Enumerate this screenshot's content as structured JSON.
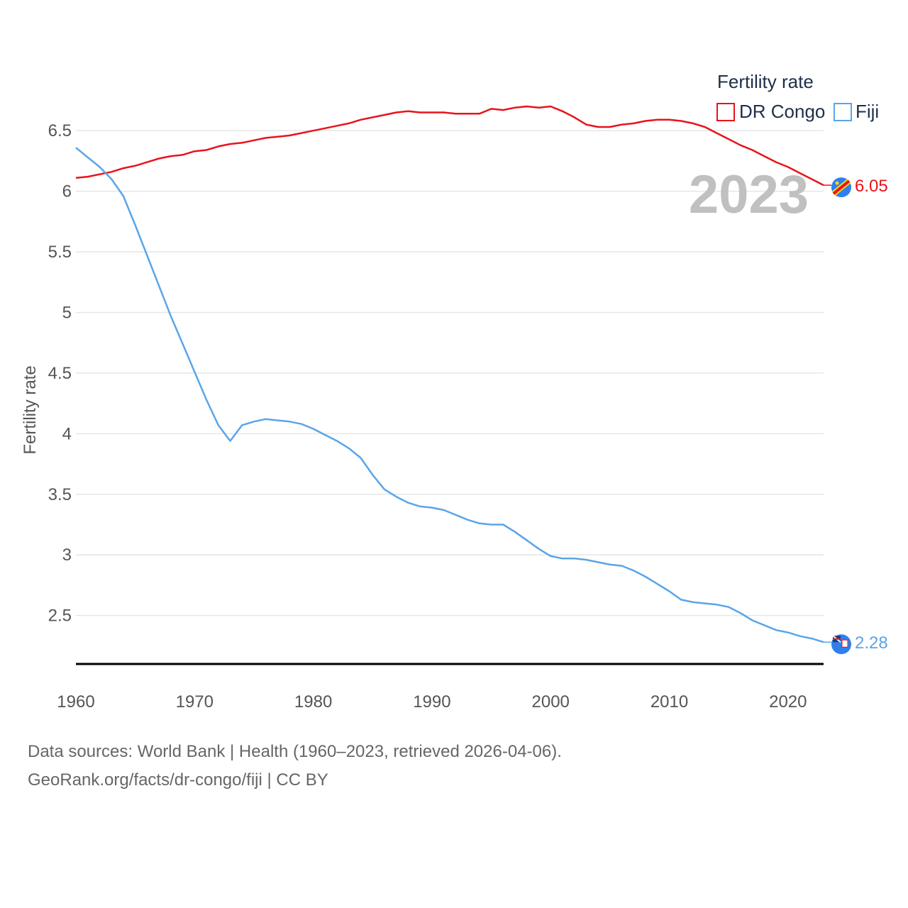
{
  "colors": {
    "dr_congo": "#e8141b",
    "fiji": "#5ba5e8",
    "grid": "#e6e6e6",
    "axis": "#000000",
    "flag_bg": "#2f80ed"
  },
  "year_watermark": "2023",
  "footer": {
    "line1": "Data sources: World Bank | Health (1960–2023, retrieved 2026-04-06).",
    "line2": "GeoRank.org/facts/dr-congo/fiji | CC BY"
  },
  "chart_data": {
    "type": "line",
    "title": "",
    "xlabel": "",
    "ylabel": "Fertility rate",
    "legend_title": "Fertility rate",
    "legend_position": "top-right",
    "xlim": [
      1960,
      2023
    ],
    "ylim": [
      2.1,
      6.7
    ],
    "x_ticks": [
      1960,
      1970,
      1980,
      1990,
      2000,
      2010,
      2020
    ],
    "y_ticks": [
      2.5,
      3,
      3.5,
      4,
      4.5,
      5,
      5.5,
      6,
      6.5
    ],
    "x": [
      1960,
      1961,
      1962,
      1963,
      1964,
      1965,
      1966,
      1967,
      1968,
      1969,
      1970,
      1971,
      1972,
      1973,
      1974,
      1975,
      1976,
      1977,
      1978,
      1979,
      1980,
      1981,
      1982,
      1983,
      1984,
      1985,
      1986,
      1987,
      1988,
      1989,
      1990,
      1991,
      1992,
      1993,
      1994,
      1995,
      1996,
      1997,
      1998,
      1999,
      2000,
      2001,
      2002,
      2003,
      2004,
      2005,
      2006,
      2007,
      2008,
      2009,
      2010,
      2011,
      2012,
      2013,
      2014,
      2015,
      2016,
      2017,
      2018,
      2019,
      2020,
      2021,
      2022,
      2023
    ],
    "series": [
      {
        "name": "DR Congo",
        "color": "#e8141b",
        "end_label": "6.05",
        "values": [
          6.11,
          6.12,
          6.14,
          6.16,
          6.19,
          6.21,
          6.24,
          6.27,
          6.29,
          6.3,
          6.33,
          6.34,
          6.37,
          6.39,
          6.4,
          6.42,
          6.44,
          6.45,
          6.46,
          6.48,
          6.5,
          6.52,
          6.54,
          6.56,
          6.59,
          6.61,
          6.63,
          6.65,
          6.66,
          6.65,
          6.65,
          6.65,
          6.64,
          6.64,
          6.64,
          6.68,
          6.67,
          6.69,
          6.7,
          6.69,
          6.7,
          6.66,
          6.61,
          6.55,
          6.53,
          6.53,
          6.55,
          6.56,
          6.58,
          6.59,
          6.59,
          6.58,
          6.56,
          6.53,
          6.48,
          6.43,
          6.38,
          6.34,
          6.29,
          6.24,
          6.2,
          6.15,
          6.1,
          6.05
        ]
      },
      {
        "name": "Fiji",
        "color": "#5ba5e8",
        "end_label": "2.28",
        "values": [
          6.36,
          6.28,
          6.2,
          6.1,
          5.96,
          5.72,
          5.47,
          5.22,
          4.97,
          4.74,
          4.51,
          4.28,
          4.07,
          3.94,
          4.07,
          4.1,
          4.12,
          4.11,
          4.1,
          4.08,
          4.04,
          3.99,
          3.94,
          3.88,
          3.8,
          3.66,
          3.54,
          3.48,
          3.43,
          3.4,
          3.39,
          3.37,
          3.33,
          3.29,
          3.26,
          3.25,
          3.25,
          3.19,
          3.12,
          3.05,
          2.99,
          2.97,
          2.97,
          2.96,
          2.94,
          2.92,
          2.91,
          2.87,
          2.82,
          2.76,
          2.7,
          2.63,
          2.61,
          2.6,
          2.59,
          2.57,
          2.52,
          2.46,
          2.42,
          2.38,
          2.36,
          2.33,
          2.31,
          2.28
        ]
      }
    ]
  }
}
